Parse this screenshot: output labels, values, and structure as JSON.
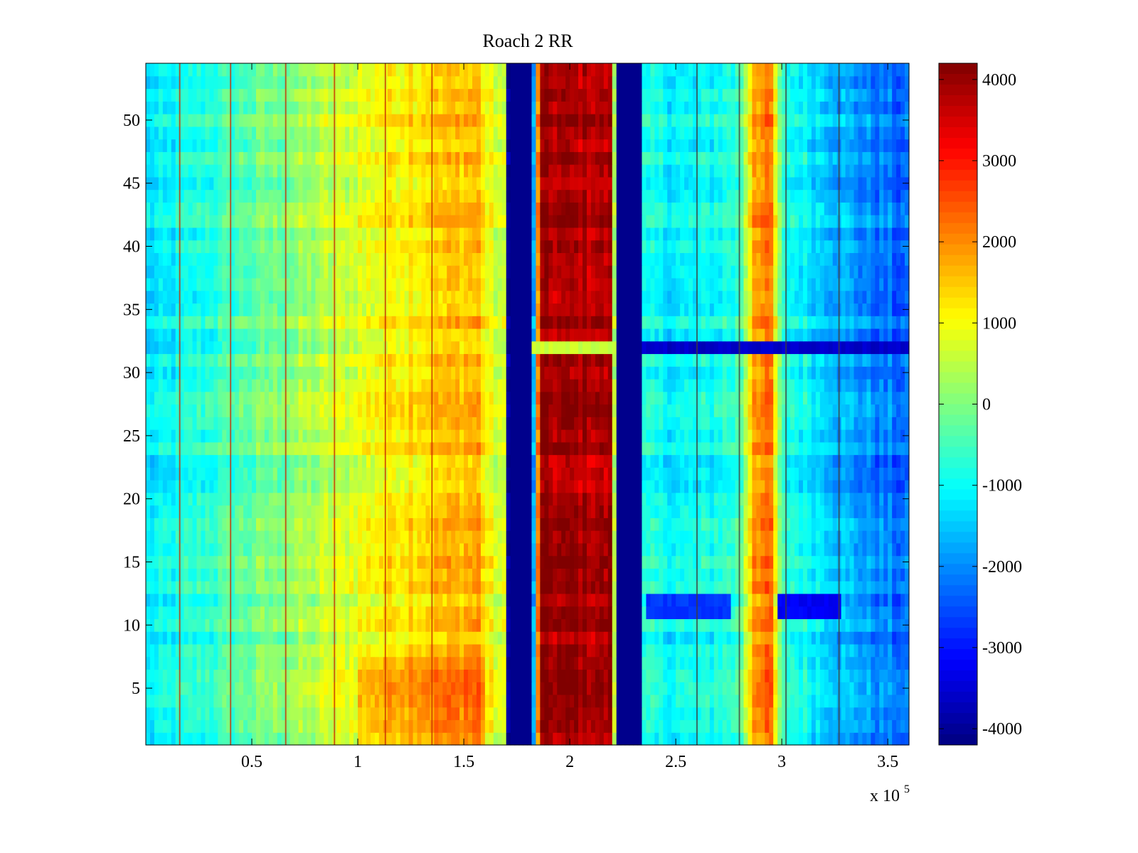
{
  "chart_data": {
    "type": "heatmap",
    "title": "Roach 2 RR",
    "xlabel": "",
    "ylabel": "",
    "x_multiplier_label": "x 10",
    "x_multiplier_exponent": "5",
    "xlim": [
      0,
      3.6
    ],
    "ylim": [
      0.5,
      54.5
    ],
    "x_ticks": [
      0.5,
      1,
      1.5,
      2,
      2.5,
      3,
      3.5
    ],
    "x_tick_labels": [
      "0.5",
      "1",
      "1.5",
      "2",
      "2.5",
      "3",
      "3.5"
    ],
    "y_ticks": [
      5,
      10,
      15,
      20,
      25,
      30,
      35,
      40,
      45,
      50
    ],
    "y_tick_labels": [
      "5",
      "10",
      "15",
      "20",
      "25",
      "30",
      "35",
      "40",
      "45",
      "50"
    ],
    "rows": 54,
    "colormap": "jet",
    "clim": [
      -4200,
      4200
    ],
    "colorbar": {
      "ticks": [
        4000,
        3000,
        2000,
        1000,
        0,
        -1000,
        -2000,
        -3000,
        -4000
      ],
      "tick_labels": [
        "4000",
        "3000",
        "2000",
        "1000",
        "0",
        "-1000",
        "-2000",
        "-3000",
        "-4000"
      ]
    },
    "column_profile": [
      [
        0.0,
        -1300
      ],
      [
        0.08,
        -1150
      ],
      [
        0.3,
        -700
      ],
      [
        0.5,
        -250
      ],
      [
        0.75,
        250
      ],
      [
        1.0,
        850
      ],
      [
        1.2,
        1250
      ],
      [
        1.45,
        1550
      ],
      [
        1.58,
        1700
      ],
      [
        1.6,
        1000
      ],
      [
        1.7,
        500
      ],
      [
        1.71,
        -4100
      ],
      [
        1.82,
        -4100
      ],
      [
        1.84,
        400
      ],
      [
        1.86,
        3900
      ],
      [
        2.2,
        3800
      ],
      [
        2.21,
        600
      ],
      [
        2.22,
        -4100
      ],
      [
        2.33,
        -4100
      ],
      [
        2.35,
        -1000
      ],
      [
        2.6,
        -1100
      ],
      [
        2.8,
        -600
      ],
      [
        2.87,
        2000
      ],
      [
        2.95,
        2100
      ],
      [
        3.0,
        -700
      ],
      [
        3.15,
        -1200
      ],
      [
        3.3,
        -1700
      ],
      [
        3.45,
        -2100
      ],
      [
        3.6,
        -2400
      ]
    ],
    "row_features": [
      {
        "rows": [
          32,
          32
        ],
        "effect": "horizontal band",
        "x_range": [
          2.33,
          3.6
        ],
        "value": -3600
      },
      {
        "rows": [
          32,
          32
        ],
        "effect": "horizontal band",
        "x_range": [
          1.82,
          2.22
        ],
        "value": 600
      },
      {
        "rows": [
          11,
          12
        ],
        "effect": "dip",
        "x_range": [
          2.35,
          2.75
        ],
        "value": -2700
      },
      {
        "rows": [
          11,
          12
        ],
        "effect": "dip",
        "x_range": [
          2.97,
          3.27
        ],
        "value": -3200
      },
      {
        "rows": [
          1,
          7
        ],
        "effect": "raise",
        "x_range": [
          1.0,
          1.6
        ],
        "value": 500
      }
    ],
    "vertical_lines_x": [
      0.16,
      0.4,
      0.66,
      0.89,
      1.13,
      1.35,
      2.6,
      2.8,
      3.02,
      3.27
    ]
  }
}
